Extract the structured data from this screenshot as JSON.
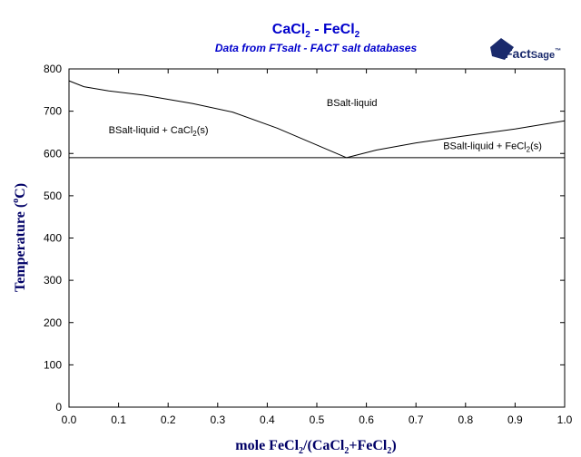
{
  "chart_data": {
    "type": "line",
    "title": {
      "main": "CaCl",
      "sub1": "2",
      "mid": " - FeCl",
      "sub2": "2"
    },
    "subtitle": "Data from FTsalt - FACT salt databases",
    "logo": {
      "part1": "Fact",
      "part2": "Sage",
      "mark": "™"
    },
    "xlabel": {
      "p1": "mole FeCl",
      "s1": "2",
      "p2": "/(CaCl",
      "s2": "2",
      "p3": "+FeCl",
      "s3": "2",
      "p4": ")"
    },
    "ylabel": {
      "p1": "Temperature (",
      "deg": "o",
      "p2": "C)"
    },
    "xlim": [
      0,
      1
    ],
    "ylim": [
      0,
      800
    ],
    "x_ticks": [
      "0.0",
      "0.1",
      "0.2",
      "0.3",
      "0.4",
      "0.5",
      "0.6",
      "0.7",
      "0.8",
      "0.9",
      "1.0"
    ],
    "y_ticks": [
      "0",
      "100",
      "200",
      "300",
      "400",
      "500",
      "600",
      "700",
      "800"
    ],
    "eutectic_temperature": 590,
    "series": [
      {
        "x": [
          0.0,
          0.03,
          0.08,
          0.15,
          0.25,
          0.33,
          0.42,
          0.5,
          0.56
        ],
        "y": [
          772,
          758,
          748,
          738,
          718,
          698,
          660,
          620,
          590
        ]
      },
      {
        "x": [
          0.56,
          0.62,
          0.7,
          0.8,
          0.9,
          1.0
        ],
        "y": [
          590,
          608,
          625,
          642,
          658,
          677
        ]
      }
    ],
    "annotations": [
      {
        "text": "BSalt-liquid",
        "x": 0.52,
        "y": 712
      },
      {
        "text": "BSalt-liquid + CaCl",
        "sub": "2",
        "tail": "(s)",
        "x": 0.08,
        "y": 648
      },
      {
        "text": "BSalt-liquid + FeCl",
        "sub": "2",
        "tail": "(s)",
        "x": 0.755,
        "y": 610
      }
    ]
  }
}
